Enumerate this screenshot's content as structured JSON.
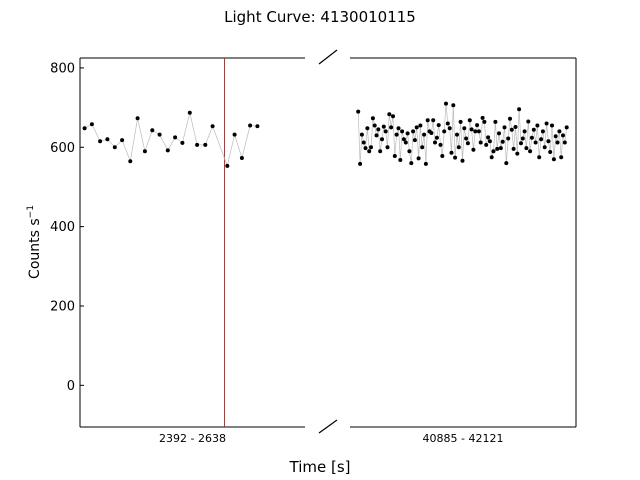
{
  "chart_data": {
    "type": "scatter",
    "title": "Light Curve: 4130010115",
    "xlabel": "Time [s]",
    "ylabel_main": "Counts s",
    "ylabel_exp": "−1",
    "ylim": [
      -105,
      825
    ],
    "yticks": [
      0,
      200,
      400,
      600,
      800
    ],
    "grid": false,
    "broken_x_axis": true,
    "marker_color": "#000000",
    "line_color": "#bbbbbb",
    "vline_color": "#d62728",
    "segments": [
      {
        "label": "2392 - 2638",
        "x_range": [
          2392,
          2638
        ],
        "vline_x": 2550,
        "x": [
          2397,
          2405,
          2414,
          2422,
          2430,
          2438,
          2447,
          2455,
          2463,
          2471,
          2479,
          2488,
          2496,
          2504,
          2512,
          2520,
          2529,
          2537,
          2553,
          2561,
          2569,
          2578,
          2586
        ],
        "y": [
          648,
          658,
          615,
          620,
          600,
          618,
          565,
          673,
          590,
          643,
          632,
          592,
          625,
          611,
          687,
          606,
          606,
          653,
          553,
          632,
          573,
          655,
          653
        ]
      },
      {
        "label": "40885 - 42121",
        "x_range": [
          40885,
          42121
        ],
        "x": [
          40930,
          40940,
          40950,
          40960,
          40970,
          40980,
          40990,
          41000,
          41010,
          41020,
          41030,
          41040,
          41050,
          41060,
          41070,
          41080,
          41090,
          41100,
          41110,
          41120,
          41130,
          41140,
          41150,
          41160,
          41170,
          41180,
          41190,
          41200,
          41210,
          41220,
          41230,
          41240,
          41250,
          41260,
          41270,
          41280,
          41290,
          41300,
          41310,
          41320,
          41330,
          41340,
          41350,
          41360,
          41370,
          41380,
          41390,
          41400,
          41410,
          41420,
          41430,
          41440,
          41450,
          41460,
          41470,
          41480,
          41490,
          41500,
          41510,
          41520,
          41530,
          41540,
          41550,
          41560,
          41570,
          41580,
          41590,
          41600,
          41610,
          41620,
          41630,
          41640,
          41650,
          41660,
          41670,
          41680,
          41690,
          41700,
          41710,
          41720,
          41730,
          41740,
          41750,
          41760,
          41770,
          41780,
          41790,
          41800,
          41810,
          41820,
          41830,
          41840,
          41850,
          41860,
          41870,
          41880,
          41890,
          41900,
          41910,
          41920,
          41930,
          41940,
          41950,
          41960,
          41970,
          41980,
          41990,
          42000,
          42010,
          42020,
          42030,
          42040,
          42050,
          42060,
          42070
        ],
        "y": [
          690,
          558,
          632,
          612,
          598,
          648,
          590,
          600,
          673,
          655,
          630,
          645,
          590,
          620,
          652,
          640,
          600,
          683,
          650,
          678,
          578,
          632,
          648,
          568,
          640,
          620,
          612,
          635,
          590,
          560,
          640,
          618,
          650,
          572,
          655,
          600,
          632,
          558,
          668,
          640,
          636,
          668,
          612,
          624,
          656,
          606,
          578,
          640,
          710,
          660,
          648,
          586,
          706,
          574,
          632,
          600,
          664,
          566,
          648,
          622,
          610,
          668,
          645,
          594,
          640,
          656,
          640,
          612,
          674,
          664,
          606,
          625,
          615,
          575,
          590,
          664,
          596,
          635,
          598,
          614,
          650,
          560,
          622,
          672,
          644,
          596,
          651,
          584,
          696,
          610,
          622,
          640,
          598,
          665,
          590,
          624,
          644,
          612,
          655,
          575,
          620,
          640,
          600,
          660,
          615,
          588,
          655,
          570,
          628,
          612,
          640,
          575,
          630,
          612,
          650
        ]
      }
    ]
  }
}
